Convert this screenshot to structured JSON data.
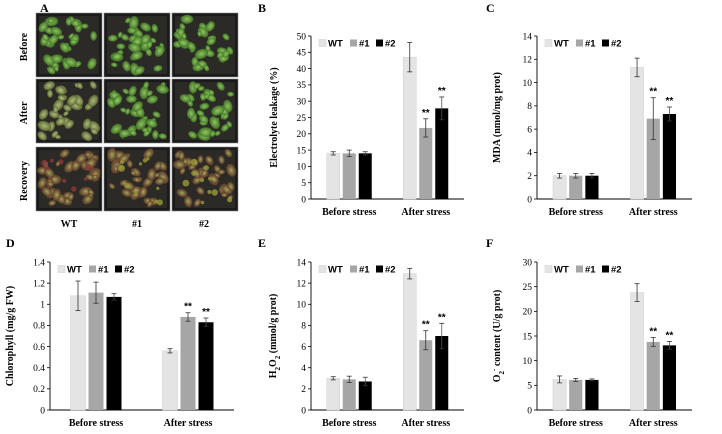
{
  "panel_a": {
    "letter": "A",
    "row_labels": [
      "Before",
      "After",
      "Recovery"
    ],
    "col_labels": [
      "WT",
      "#1",
      "#2"
    ]
  },
  "legend": {
    "labels": [
      "WT",
      "#1",
      "#2"
    ],
    "colors": [
      "#e4e4e4",
      "#a6a6a6",
      "#000000"
    ]
  },
  "chart_data": [
    {
      "panel": "B",
      "type": "bar",
      "categories": [
        "Before stress",
        "After stress"
      ],
      "series": [
        {
          "name": "WT",
          "values": [
            14.0,
            43.5
          ],
          "errors": [
            0.5,
            4.5
          ]
        },
        {
          "name": "#1",
          "values": [
            14.0,
            21.8
          ],
          "errors": [
            1.0,
            2.8
          ]
        },
        {
          "name": "#2",
          "values": [
            14.0,
            27.8
          ],
          "errors": [
            0.5,
            3.5
          ]
        }
      ],
      "significance": [
        [
          "",
          ""
        ],
        [
          "",
          "**"
        ],
        [
          "",
          "**"
        ]
      ],
      "ylabel": "Electrolyte leakage (%)",
      "ylim": [
        0,
        50
      ],
      "yticks": [
        0,
        5,
        10,
        15,
        20,
        25,
        30,
        35,
        40,
        45,
        50
      ],
      "grid": false,
      "legend": "top-left"
    },
    {
      "panel": "C",
      "type": "bar",
      "categories": [
        "Before stress",
        "After stress"
      ],
      "series": [
        {
          "name": "WT",
          "values": [
            2.0,
            11.3
          ],
          "errors": [
            0.2,
            0.8
          ]
        },
        {
          "name": "#1",
          "values": [
            2.0,
            6.9
          ],
          "errors": [
            0.2,
            1.8
          ]
        },
        {
          "name": "#2",
          "values": [
            2.0,
            7.3
          ],
          "errors": [
            0.2,
            0.6
          ]
        }
      ],
      "significance": [
        [
          "",
          ""
        ],
        [
          "",
          "**"
        ],
        [
          "",
          "**"
        ]
      ],
      "ylabel": "MDA (nmol/mg prot)",
      "ylim": [
        0,
        14
      ],
      "yticks": [
        0,
        2,
        4,
        6,
        8,
        10,
        12,
        14
      ],
      "grid": false,
      "legend": "top-left"
    },
    {
      "panel": "D",
      "type": "bar",
      "categories": [
        "Before stress",
        "After stress"
      ],
      "series": [
        {
          "name": "WT",
          "values": [
            1.08,
            0.56
          ],
          "errors": [
            0.14,
            0.02
          ]
        },
        {
          "name": "#1",
          "values": [
            1.11,
            0.88
          ],
          "errors": [
            0.1,
            0.04
          ]
        },
        {
          "name": "#2",
          "values": [
            1.07,
            0.83
          ],
          "errors": [
            0.03,
            0.04
          ]
        }
      ],
      "significance": [
        [
          "",
          ""
        ],
        [
          "",
          "**"
        ],
        [
          "",
          "**"
        ]
      ],
      "ylabel": "Chlorophyll (mg/g FW)",
      "ylim": [
        0,
        1.4
      ],
      "yticks": [
        0,
        0.2,
        0.4,
        0.6,
        0.8,
        1,
        1.2,
        1.4
      ],
      "ytick_labels": [
        "0",
        "0.2",
        "0.4",
        "0.6",
        "0.8",
        "1",
        "1.2",
        "1.4"
      ],
      "grid": false,
      "legend": "top-left"
    },
    {
      "panel": "E",
      "type": "bar",
      "categories": [
        "Before stress",
        "After stress"
      ],
      "series": [
        {
          "name": "WT",
          "values": [
            3.0,
            12.9
          ],
          "errors": [
            0.15,
            0.5
          ]
        },
        {
          "name": "#1",
          "values": [
            2.9,
            6.6
          ],
          "errors": [
            0.3,
            0.9
          ]
        },
        {
          "name": "#2",
          "values": [
            2.7,
            7.0
          ],
          "errors": [
            0.4,
            1.2
          ]
        }
      ],
      "significance": [
        [
          "",
          ""
        ],
        [
          "",
          "**"
        ],
        [
          "",
          "**"
        ]
      ],
      "ylabel": "H2O2 (mmol/g prot)",
      "ylabel_parts": [
        "H",
        "2",
        "O",
        "2",
        " (mmol/g prot)"
      ],
      "ylim": [
        0,
        14
      ],
      "yticks": [
        0,
        2,
        4,
        6,
        8,
        10,
        12,
        14
      ],
      "grid": false,
      "legend": "top-left"
    },
    {
      "panel": "F",
      "type": "bar",
      "categories": [
        "Before stress",
        "After stress"
      ],
      "series": [
        {
          "name": "WT",
          "values": [
            6.2,
            23.8
          ],
          "errors": [
            0.7,
            1.8
          ]
        },
        {
          "name": "#1",
          "values": [
            6.1,
            13.8
          ],
          "errors": [
            0.3,
            0.9
          ]
        },
        {
          "name": "#2",
          "values": [
            6.1,
            13.1
          ],
          "errors": [
            0.2,
            0.8
          ]
        }
      ],
      "significance": [
        [
          "",
          ""
        ],
        [
          "",
          "**"
        ],
        [
          "",
          "**"
        ]
      ],
      "ylabel": "O2- content (U/g prot)",
      "ylabel_parts": [
        "O",
        "2",
        "-",
        " content (U/g prot)"
      ],
      "ylim": [
        0,
        30
      ],
      "yticks": [
        0,
        5,
        10,
        15,
        20,
        25,
        30
      ],
      "grid": false,
      "legend": "top-left"
    }
  ]
}
